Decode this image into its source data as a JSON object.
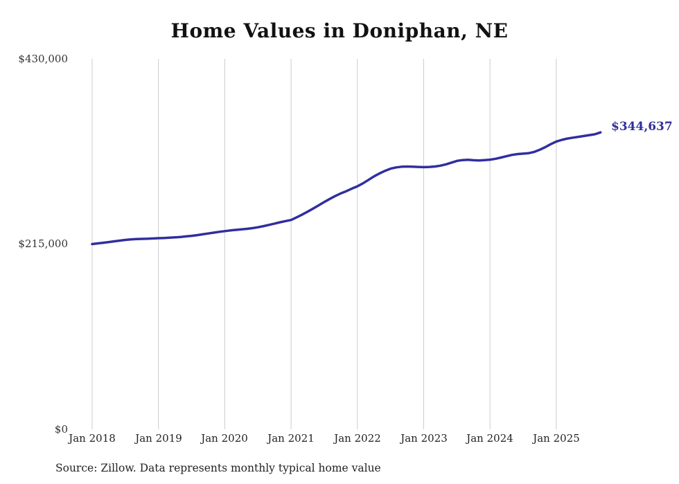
{
  "title": "Home Values in Doniphan, NE",
  "source_note": "Source: Zillow. Data represents monthly typical home value",
  "chart_data": {
    "type": "line",
    "title": "Home Values in Doniphan, NE",
    "xlabel": "",
    "ylabel": "",
    "x_tick_labels": [
      "Jan 2018",
      "Jan 2019",
      "Jan 2020",
      "Jan 2021",
      "Jan 2022",
      "Jan 2023",
      "Jan 2024",
      "Jan 2025"
    ],
    "y_tick_labels": [
      "$0",
      "$215,000",
      "$430,000"
    ],
    "y_ticks": [
      0,
      215000,
      430000
    ],
    "ylim": [
      0,
      430000
    ],
    "grid": "vertical-only",
    "grid_color": "#cccccc",
    "line_color": "#312e9e",
    "end_value": 344637,
    "end_value_label": "$344,637",
    "frequency": "monthly",
    "x_start": "2018-01",
    "x_end": "2025-09",
    "series": [
      {
        "name": "Typical home value",
        "values": [
          215000,
          215800,
          216500,
          217300,
          218200,
          219000,
          219800,
          220400,
          220800,
          221000,
          221200,
          221500,
          221800,
          222100,
          222400,
          222800,
          223300,
          223900,
          224600,
          225400,
          226300,
          227300,
          228300,
          229200,
          230000,
          230800,
          231500,
          232100,
          232700,
          233500,
          234500,
          235800,
          237300,
          238800,
          240300,
          241700,
          243000,
          246000,
          249200,
          252600,
          256200,
          260000,
          263800,
          267400,
          270800,
          273800,
          276400,
          279400,
          282000,
          285500,
          289500,
          293500,
          297000,
          300000,
          302500,
          304000,
          304800,
          305000,
          304800,
          304500,
          304300,
          304500,
          305000,
          306000,
          307500,
          309500,
          311500,
          312500,
          312800,
          312300,
          312000,
          312500,
          313000,
          314000,
          315500,
          317000,
          318500,
          319500,
          320000,
          320500,
          322000,
          324500,
          327500,
          331000,
          334000,
          336000,
          337500,
          338500,
          339500,
          340500,
          341500,
          342500,
          344637
        ]
      }
    ]
  }
}
